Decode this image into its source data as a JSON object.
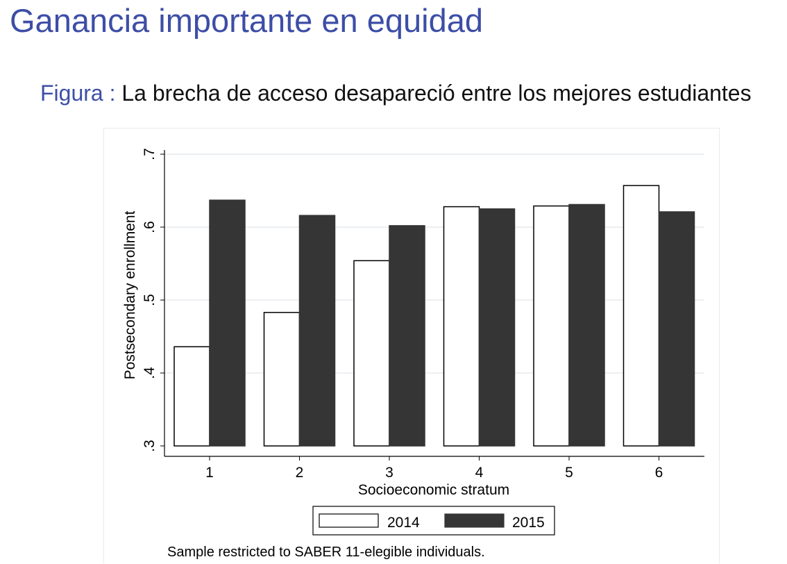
{
  "slide": {
    "title": "Ganancia importante en equidad",
    "caption_label": "Figura :",
    "caption_text": "La brecha de acceso desapareció entre los mejores estudiantes"
  },
  "chart_data": {
    "type": "bar",
    "categories": [
      "1",
      "2",
      "3",
      "4",
      "5",
      "6"
    ],
    "series": [
      {
        "name": "2014",
        "values": [
          0.436,
          0.483,
          0.554,
          0.628,
          0.629,
          0.657
        ],
        "color": "#ffffff",
        "stroke": "#000000"
      },
      {
        "name": "2015",
        "values": [
          0.637,
          0.616,
          0.602,
          0.625,
          0.631,
          0.621
        ],
        "color": "#353535",
        "stroke": "#353535"
      }
    ],
    "xlabel": "Socioeconomic stratum",
    "ylabel": "Postsecondary enrollment",
    "ylim": [
      0.3,
      0.7
    ],
    "yticks": [
      0.3,
      0.4,
      0.5,
      0.6,
      0.7
    ],
    "ytick_labels": [
      ".3",
      ".4",
      ".5",
      ".6",
      ".7"
    ],
    "grid": true,
    "grid_color": "#e6eaee",
    "legend_placement": "bottom-center",
    "note": "Sample restricted to SABER 11-elegible individuals."
  }
}
